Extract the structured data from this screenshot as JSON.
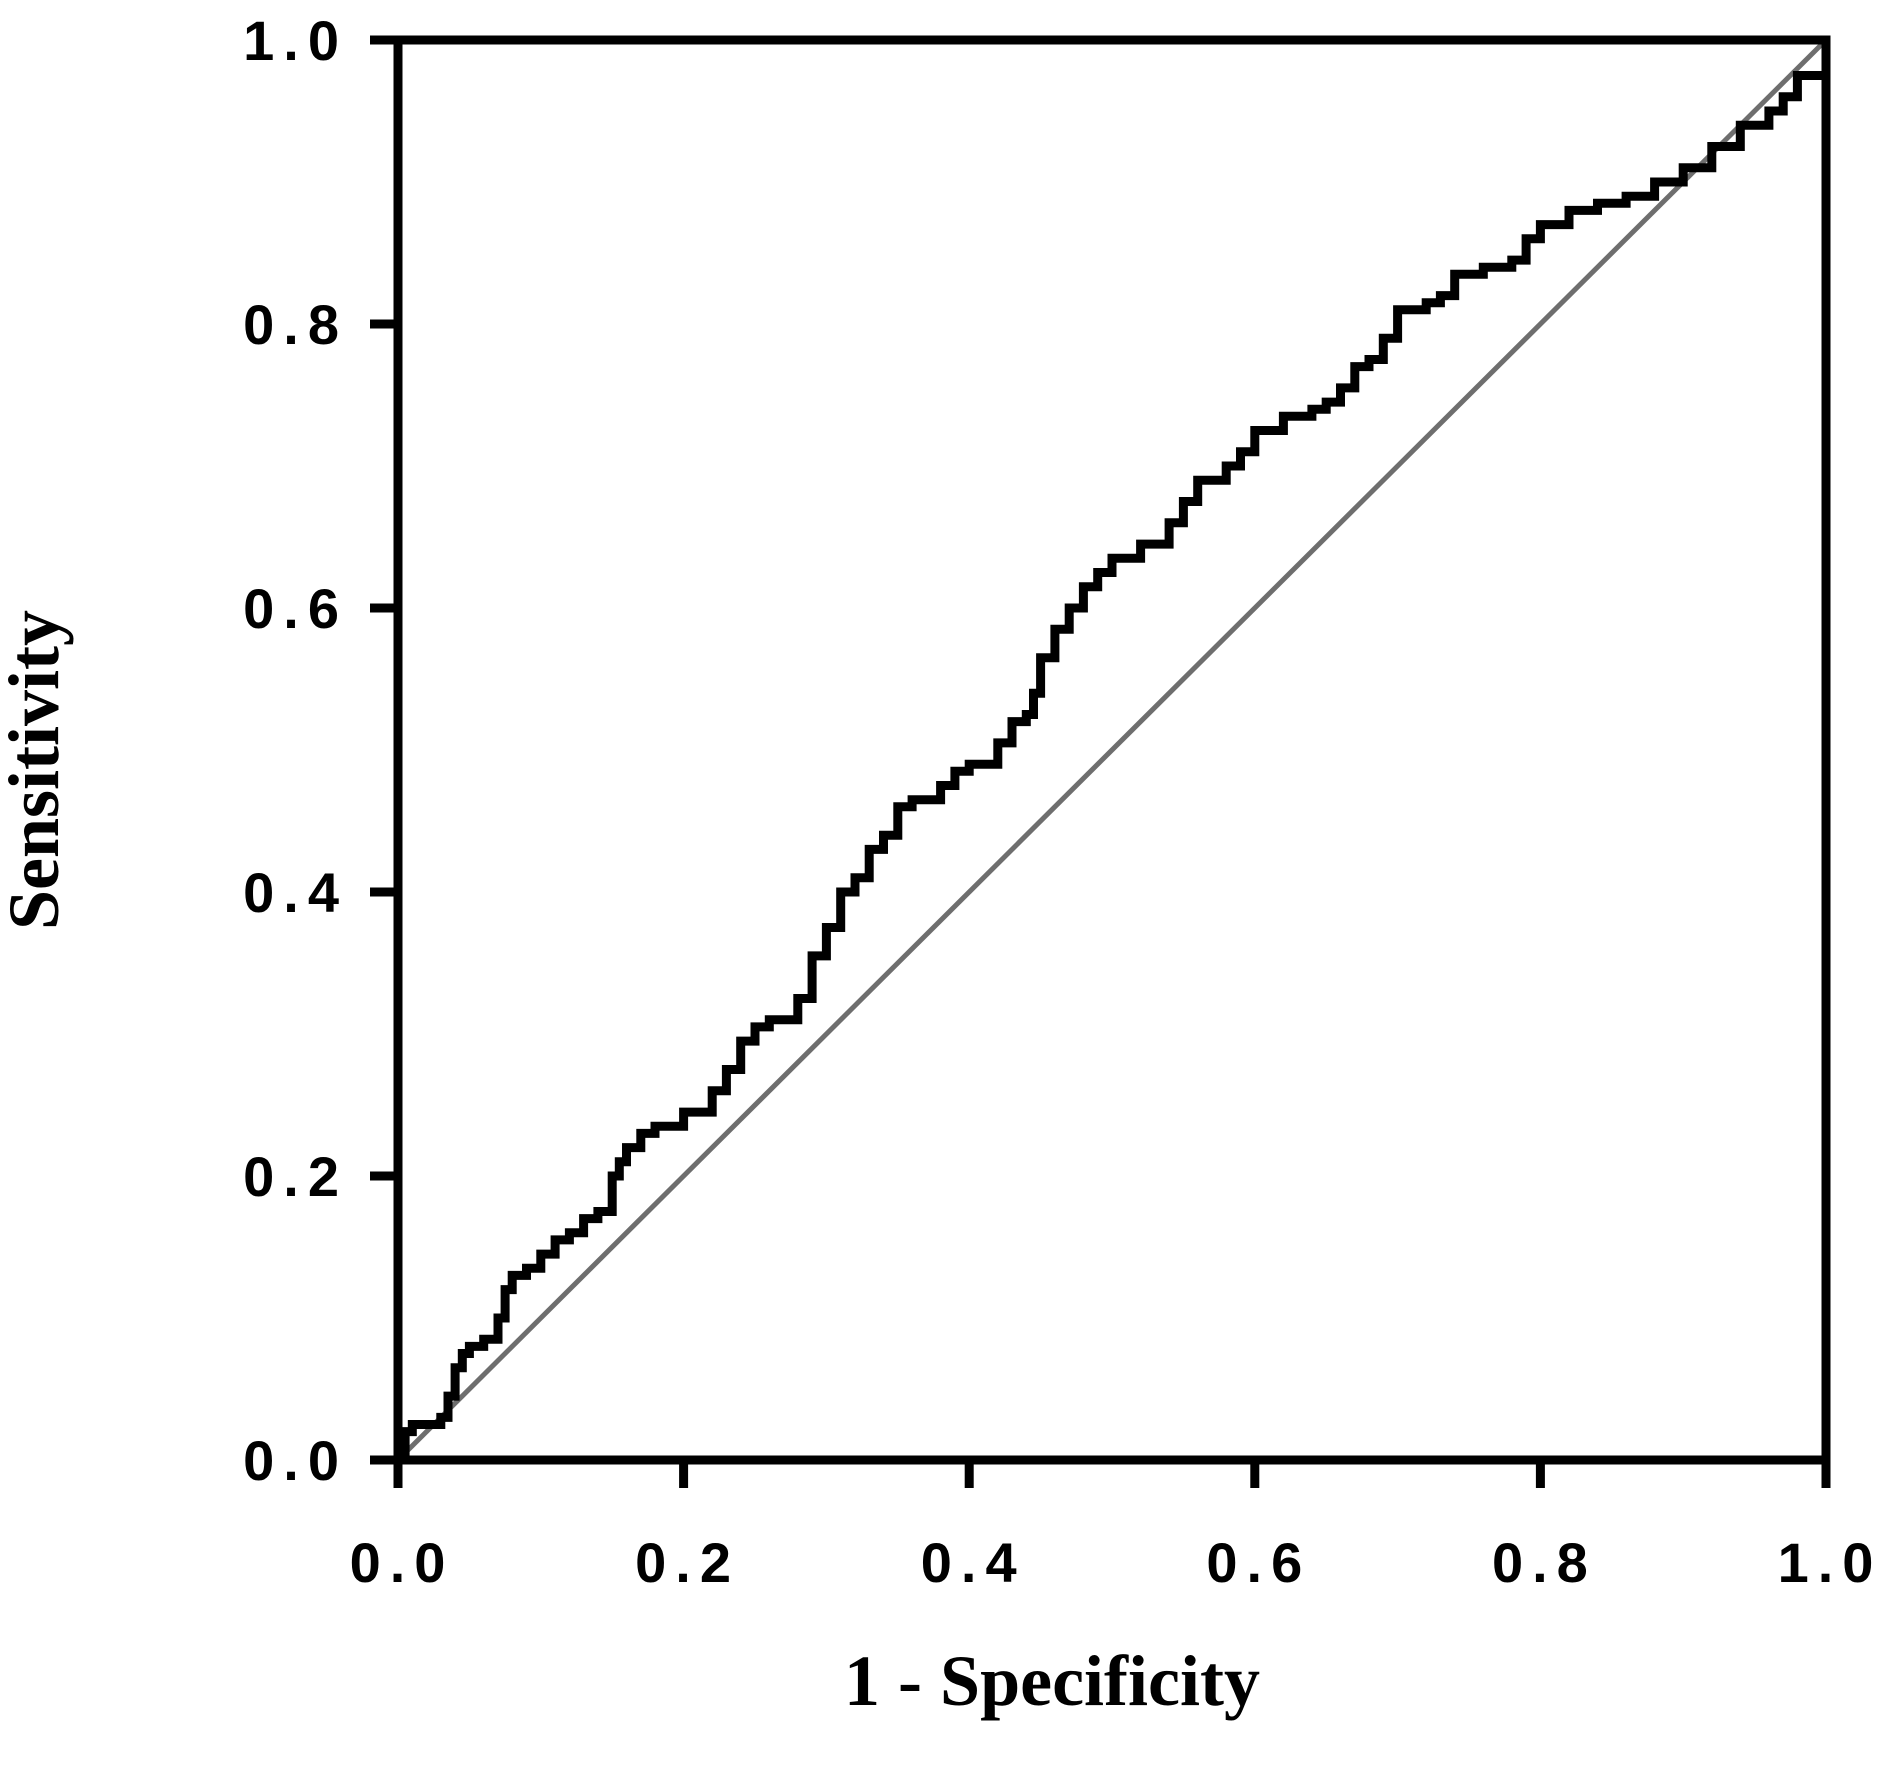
{
  "chart_data": {
    "type": "line",
    "title": "",
    "xlabel": "1 - Specificity",
    "ylabel": "Sensitivity",
    "xlim": [
      0,
      1
    ],
    "ylim": [
      0,
      1
    ],
    "x_ticks": [
      "0.0",
      "0.2",
      "0.4",
      "0.6",
      "0.8",
      "1.0"
    ],
    "y_ticks": [
      "0.0",
      "0.2",
      "0.4",
      "0.6",
      "0.8",
      "1.0"
    ],
    "grid": false,
    "legend": "none",
    "series": [
      {
        "style": "step",
        "color": "#000000",
        "x": [
          0.0,
          0.005,
          0.01,
          0.03,
          0.035,
          0.04,
          0.045,
          0.05,
          0.06,
          0.07,
          0.075,
          0.08,
          0.09,
          0.1,
          0.11,
          0.12,
          0.13,
          0.14,
          0.15,
          0.155,
          0.16,
          0.17,
          0.18,
          0.2,
          0.22,
          0.23,
          0.24,
          0.25,
          0.26,
          0.28,
          0.29,
          0.3,
          0.31,
          0.32,
          0.33,
          0.34,
          0.35,
          0.36,
          0.38,
          0.39,
          0.4,
          0.42,
          0.43,
          0.44,
          0.445,
          0.45,
          0.46,
          0.47,
          0.48,
          0.49,
          0.5,
          0.52,
          0.54,
          0.55,
          0.56,
          0.58,
          0.59,
          0.6,
          0.62,
          0.64,
          0.65,
          0.66,
          0.67,
          0.68,
          0.69,
          0.7,
          0.72,
          0.73,
          0.74,
          0.76,
          0.78,
          0.79,
          0.8,
          0.82,
          0.84,
          0.86,
          0.88,
          0.9,
          0.92,
          0.94,
          0.96,
          0.97,
          0.98,
          1.0
        ],
        "y": [
          0.0,
          0.02,
          0.025,
          0.03,
          0.045,
          0.065,
          0.075,
          0.08,
          0.085,
          0.1,
          0.12,
          0.13,
          0.135,
          0.145,
          0.155,
          0.16,
          0.17,
          0.175,
          0.2,
          0.21,
          0.22,
          0.23,
          0.235,
          0.245,
          0.26,
          0.275,
          0.295,
          0.305,
          0.31,
          0.325,
          0.355,
          0.375,
          0.4,
          0.41,
          0.43,
          0.44,
          0.46,
          0.465,
          0.475,
          0.485,
          0.49,
          0.505,
          0.52,
          0.525,
          0.54,
          0.565,
          0.585,
          0.6,
          0.615,
          0.625,
          0.635,
          0.645,
          0.66,
          0.675,
          0.69,
          0.7,
          0.71,
          0.725,
          0.735,
          0.74,
          0.745,
          0.755,
          0.77,
          0.775,
          0.79,
          0.81,
          0.815,
          0.82,
          0.835,
          0.84,
          0.845,
          0.86,
          0.87,
          0.88,
          0.885,
          0.89,
          0.9,
          0.91,
          0.925,
          0.94,
          0.95,
          0.96,
          0.975,
          1.0
        ]
      },
      {
        "style": "diagonal",
        "color": "#6e6e6e",
        "x": [
          0,
          1
        ],
        "y": [
          0,
          1
        ]
      }
    ]
  }
}
